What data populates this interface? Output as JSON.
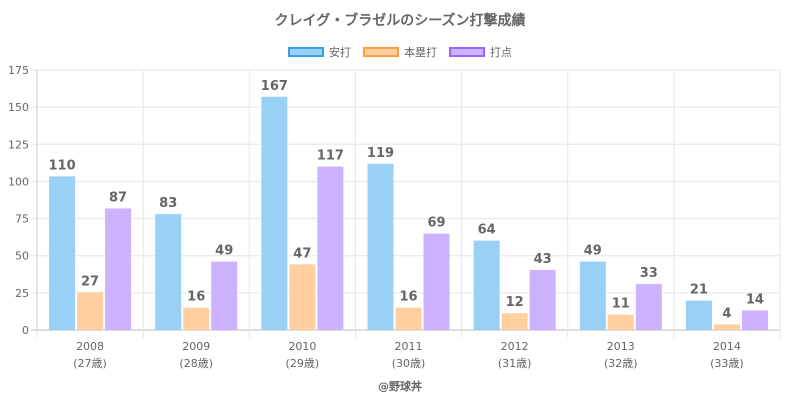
{
  "chart_data": {
    "type": "bar",
    "title": "クレイグ・ブラゼルのシーズン打撃成績",
    "categories": [
      "2008",
      "2009",
      "2010",
      "2011",
      "2012",
      "2013",
      "2014"
    ],
    "category_sublabels": [
      "(27歳)",
      "(28歳)",
      "(29歳)",
      "(30歳)",
      "(31歳)",
      "(32歳)",
      "(33歳)"
    ],
    "series": [
      {
        "name": "安打",
        "values": [
          110,
          83,
          167,
          119,
          64,
          49,
          21
        ],
        "fill": "#9ad0f5",
        "border": "#36a2eb"
      },
      {
        "name": "本塁打",
        "values": [
          27,
          16,
          47,
          16,
          12,
          11,
          4
        ],
        "fill": "#ffcf9f",
        "border": "#ff9f40"
      },
      {
        "name": "打点",
        "values": [
          87,
          49,
          117,
          69,
          43,
          33,
          14
        ],
        "fill": "#ccb2ff",
        "border": "#9966ff"
      }
    ],
    "xlabel": "",
    "ylabel": "",
    "ylim": [
      0,
      175
    ],
    "yticks": [
      0,
      25,
      50,
      75,
      100,
      125,
      150,
      175
    ],
    "grid": true,
    "legend": "top-center",
    "data_labels": true
  },
  "footer": "@野球丼"
}
